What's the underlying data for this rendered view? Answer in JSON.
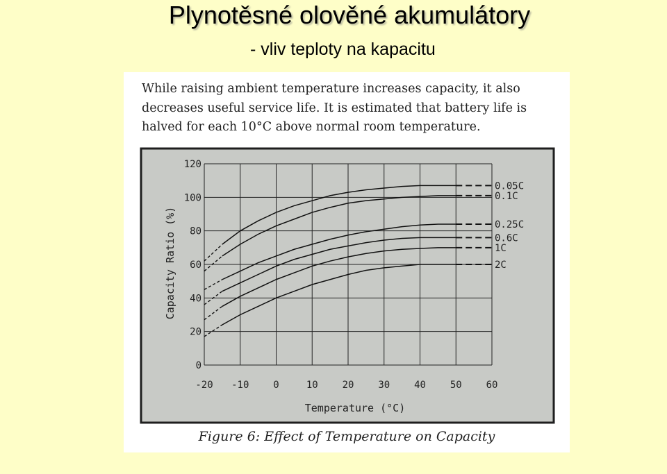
{
  "slide": {
    "title": "Plynotěsné olověné akumulátory",
    "subtitle": "- vliv teploty na kapacitu"
  },
  "figure": {
    "description_lines": [
      "While raising ambient temperature increases capacity, it also",
      "decreases useful service life. It is estimated that battery life is",
      "halved for each 10°C above normal room temperature."
    ],
    "caption": "Figure 6: Effect of Temperature on Capacity"
  },
  "colors": {
    "plot_background": "#c8cac6",
    "frame": "#1e1e1e",
    "curve": "#111111"
  },
  "chart_data": {
    "type": "line",
    "title": "",
    "xlabel": "Temperature (°C)",
    "ylabel": "Capacity Ratio (%)",
    "xlim": [
      -20,
      60
    ],
    "ylim": [
      0,
      120
    ],
    "x_ticks": [
      "-20",
      "-10",
      "0",
      "10",
      "20",
      "30",
      "40",
      "50",
      "60"
    ],
    "y_ticks": [
      "0",
      "20",
      "40",
      "60",
      "80",
      "100",
      "120"
    ],
    "grid": true,
    "dashed_region_below_x": -15,
    "leader_lines": "dashed, from x = 50 to x = 60",
    "x": [
      -20,
      -15,
      -10,
      -5,
      0,
      5,
      10,
      15,
      20,
      25,
      30,
      35,
      40,
      45,
      50
    ],
    "series": [
      {
        "name": "0.05C",
        "values": [
          62,
          72,
          80,
          86,
          91,
          95,
          98,
          101,
          103,
          104.5,
          105.5,
          106.5,
          107,
          107,
          107
        ]
      },
      {
        "name": "0.1C",
        "values": [
          56,
          65,
          72,
          78,
          83,
          87,
          91,
          94,
          96.5,
          98,
          99,
          100,
          100.5,
          101,
          101
        ]
      },
      {
        "name": "0.25C",
        "values": [
          45,
          51,
          56,
          61,
          65,
          69,
          72,
          75,
          77.5,
          79.5,
          81,
          82.5,
          83.5,
          84,
          84
        ]
      },
      {
        "name": "0.6C",
        "values": [
          36,
          44,
          49,
          54,
          59,
          63,
          66,
          69,
          71,
          73,
          74.5,
          75.5,
          76,
          76,
          76
        ]
      },
      {
        "name": "1C",
        "values": [
          27,
          35,
          41,
          46,
          51,
          55,
          59,
          62,
          64.5,
          66.5,
          68,
          69,
          69.5,
          70,
          70
        ]
      },
      {
        "name": "2C",
        "values": [
          17,
          24,
          30,
          35,
          40,
          44,
          48,
          51,
          54,
          56.5,
          58,
          59,
          60,
          60,
          60
        ]
      }
    ]
  }
}
